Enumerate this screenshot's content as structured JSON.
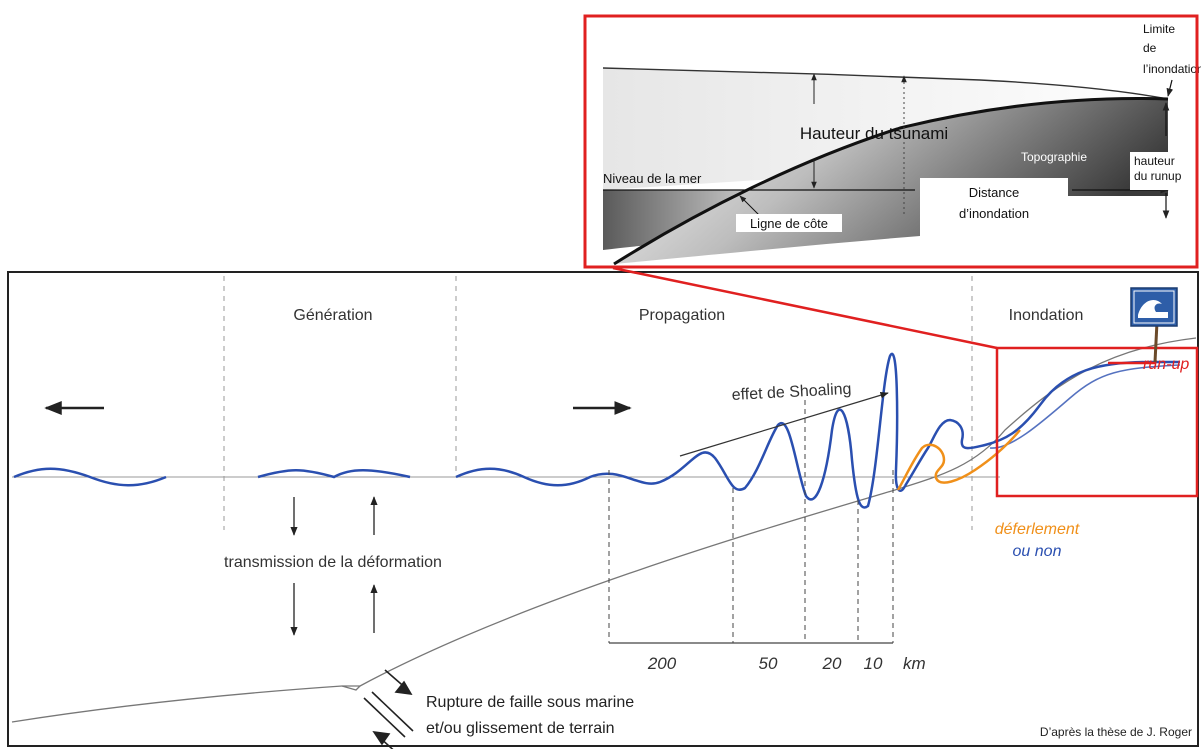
{
  "inset": {
    "label_limit_1": "Limite",
    "label_limit_2": "de",
    "label_limit_3": "l’inondation",
    "tsunami_height": "Hauteur du tsunami",
    "topography": "Topographie",
    "runup_height_1": "hauteur",
    "runup_height_2": "du runup",
    "sea_level": "Niveau de la mer",
    "inundation_distance_1": "Distance",
    "inundation_distance_2": "d’inondation",
    "coastline": "Ligne de côte"
  },
  "main": {
    "phase_generation": "Génération",
    "phase_propagation": "Propagation",
    "phase_inundation": "Inondation",
    "run_up": "run-up",
    "shoaling": "effet de Shoaling",
    "breaking": "déferlement",
    "or_not": "ou non",
    "deformation_transmission": "transmission de la déformation",
    "depth_labels": [
      "200",
      "50",
      "20",
      "10"
    ],
    "depth_unit": "km",
    "fault_rupture_1": "Rupture de faille sous marine",
    "fault_rupture_2": "et/ou glissement de terrain",
    "credit": "D’après la thèse de J. Roger"
  },
  "colors": {
    "frame_red": "#e02020",
    "wave_blue": "#2a4fb0",
    "breaking_orange": "#f0901a",
    "line_gray": "#8a8a8a",
    "text_dark": "#222222"
  },
  "icons": {
    "sign": "tsunami-warning-sign-icon"
  }
}
